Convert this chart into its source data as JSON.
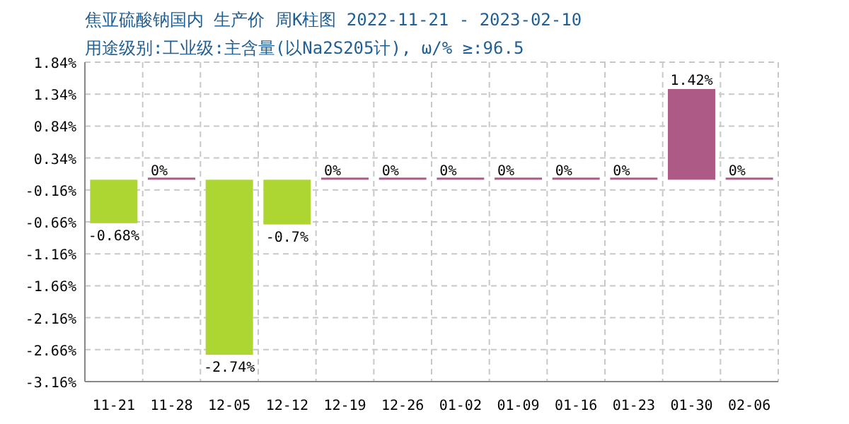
{
  "chart_data": {
    "type": "bar",
    "title": "焦亚硫酸钠国内 生产价 周K柱图 2022-11-21 - 2023-02-10",
    "subtitle": "用途级别:工业级:主含量(以Na2S205计), ω/%  ≥:96.5",
    "categories": [
      "11-21",
      "11-28",
      "12-05",
      "12-12",
      "12-19",
      "12-26",
      "01-02",
      "01-09",
      "01-16",
      "01-23",
      "01-30",
      "02-06"
    ],
    "values": [
      -0.68,
      0,
      -2.74,
      -0.7,
      0,
      0,
      0,
      0,
      0,
      0,
      1.42,
      0
    ],
    "value_labels": [
      "-0.68%",
      "0%",
      "-2.74%",
      "-0.7%",
      "0%",
      "0%",
      "0%",
      "0%",
      "0%",
      "0%",
      "1.42%",
      "0%"
    ],
    "colors": [
      "#add633",
      "#ad5a86",
      "#add633",
      "#add633",
      "#ad5a86",
      "#ad5a86",
      "#ad5a86",
      "#ad5a86",
      "#ad5a86",
      "#ad5a86",
      "#ad5a86",
      "#ad5a86"
    ],
    "ylim": [
      -3.16,
      1.84
    ],
    "yticks": [
      {
        "value": 1.84,
        "label": "1.84%"
      },
      {
        "value": 1.34,
        "label": "1.34%"
      },
      {
        "value": 0.84,
        "label": "0.84%"
      },
      {
        "value": 0.34,
        "label": "0.34%"
      },
      {
        "value": -0.16,
        "label": "-0.16%"
      },
      {
        "value": -0.66,
        "label": "-0.66%"
      },
      {
        "value": -1.16,
        "label": "-1.16%"
      },
      {
        "value": -1.66,
        "label": "-1.66%"
      },
      {
        "value": -2.16,
        "label": "-2.16%"
      },
      {
        "value": -2.66,
        "label": "-2.66%"
      },
      {
        "value": -3.16,
        "label": "-3.16%"
      }
    ],
    "grid": true
  }
}
